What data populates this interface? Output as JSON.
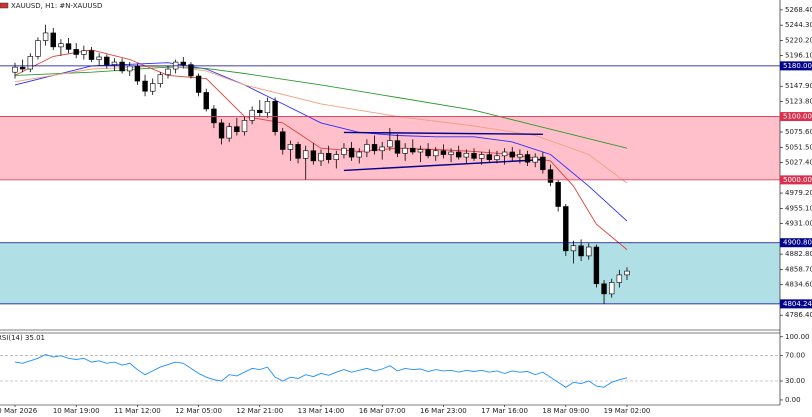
{
  "chart_data": {
    "type": "candlestick",
    "title": "XAUUSD, H1:  #N-XAUUSD",
    "categories": [
      "10 Mar 2026",
      null,
      null,
      null,
      null,
      null,
      null,
      null,
      "10 Mar 19:00",
      null,
      null,
      null,
      null,
      null,
      null,
      null,
      "11 Mar 12:00",
      null,
      null,
      null,
      null,
      null,
      null,
      null,
      "12 Mar 05:00",
      null,
      null,
      null,
      null,
      null,
      null,
      null,
      "12 Mar 21:00",
      null,
      null,
      null,
      null,
      null,
      null,
      null,
      "13 Mar 14:00",
      null,
      null,
      null,
      null,
      null,
      null,
      null,
      "16 Mar 07:00",
      null,
      null,
      null,
      null,
      null,
      null,
      null,
      "16 Mar 23:00",
      null,
      null,
      null,
      null,
      null,
      null,
      null,
      "17 Mar 16:00",
      null,
      null,
      null,
      null,
      null,
      null,
      null,
      "18 Mar 09:00",
      null,
      null,
      null,
      null,
      null,
      null,
      null,
      "19 Mar 02:00"
    ],
    "ohlc": [
      [
        5170,
        5185,
        5160,
        5178
      ],
      [
        5178,
        5190,
        5170,
        5175
      ],
      [
        5175,
        5200,
        5170,
        5195
      ],
      [
        5195,
        5225,
        5190,
        5220
      ],
      [
        5220,
        5245,
        5212,
        5232
      ],
      [
        5232,
        5240,
        5205,
        5210
      ],
      [
        5210,
        5222,
        5196,
        5215
      ],
      [
        5215,
        5224,
        5200,
        5206
      ],
      [
        5206,
        5216,
        5192,
        5198
      ],
      [
        5198,
        5212,
        5190,
        5204
      ],
      [
        5204,
        5210,
        5186,
        5190
      ],
      [
        5190,
        5200,
        5180,
        5194
      ],
      [
        5194,
        5198,
        5176,
        5182
      ],
      [
        5182,
        5192,
        5172,
        5186
      ],
      [
        5186,
        5192,
        5168,
        5172
      ],
      [
        5172,
        5186,
        5164,
        5180
      ],
      [
        5180,
        5184,
        5150,
        5156
      ],
      [
        5156,
        5166,
        5132,
        5140
      ],
      [
        5140,
        5160,
        5134,
        5152
      ],
      [
        5152,
        5170,
        5146,
        5166
      ],
      [
        5166,
        5180,
        5160,
        5175
      ],
      [
        5175,
        5190,
        5168,
        5186
      ],
      [
        5186,
        5194,
        5176,
        5182
      ],
      [
        5182,
        5186,
        5160,
        5164
      ],
      [
        5164,
        5168,
        5132,
        5138
      ],
      [
        5138,
        5144,
        5108,
        5112
      ],
      [
        5112,
        5118,
        5082,
        5090
      ],
      [
        5090,
        5096,
        5056,
        5066
      ],
      [
        5066,
        5090,
        5060,
        5084
      ],
      [
        5084,
        5098,
        5070,
        5076
      ],
      [
        5076,
        5100,
        5070,
        5094
      ],
      [
        5094,
        5116,
        5088,
        5110
      ],
      [
        5110,
        5126,
        5100,
        5106
      ],
      [
        5106,
        5130,
        5098,
        5124
      ],
      [
        5124,
        5130,
        5070,
        5076
      ],
      [
        5076,
        5082,
        5040,
        5048
      ],
      [
        5048,
        5062,
        5030,
        5056
      ],
      [
        5056,
        5060,
        5026,
        5034
      ],
      [
        5034,
        5054,
        5000,
        5046
      ],
      [
        5046,
        5058,
        5024,
        5030
      ],
      [
        5030,
        5048,
        5022,
        5042
      ],
      [
        5042,
        5054,
        5026,
        5032
      ],
      [
        5032,
        5046,
        5018,
        5040
      ],
      [
        5040,
        5058,
        5034,
        5050
      ],
      [
        5050,
        5060,
        5030,
        5036
      ],
      [
        5036,
        5050,
        5026,
        5044
      ],
      [
        5044,
        5064,
        5036,
        5056
      ],
      [
        5056,
        5070,
        5040,
        5046
      ],
      [
        5046,
        5060,
        5032,
        5052
      ],
      [
        5052,
        5082,
        5046,
        5062
      ],
      [
        5062,
        5072,
        5036,
        5042
      ],
      [
        5042,
        5058,
        5030,
        5050
      ],
      [
        5050,
        5064,
        5040,
        5044
      ],
      [
        5044,
        5054,
        5028,
        5048
      ],
      [
        5048,
        5058,
        5034,
        5038
      ],
      [
        5038,
        5052,
        5030,
        5046
      ],
      [
        5046,
        5056,
        5034,
        5040
      ],
      [
        5040,
        5050,
        5028,
        5044
      ],
      [
        5044,
        5054,
        5032,
        5036
      ],
      [
        5036,
        5048,
        5026,
        5042
      ],
      [
        5042,
        5050,
        5030,
        5034
      ],
      [
        5034,
        5044,
        5024,
        5040
      ],
      [
        5040,
        5048,
        5028,
        5032
      ],
      [
        5032,
        5046,
        5026,
        5038
      ],
      [
        5038,
        5050,
        5024,
        5044
      ],
      [
        5044,
        5052,
        5030,
        5036
      ],
      [
        5036,
        5048,
        5026,
        5040
      ],
      [
        5040,
        5046,
        5022,
        5028
      ],
      [
        5028,
        5042,
        5020,
        5036
      ],
      [
        5036,
        5044,
        5010,
        5016
      ],
      [
        5016,
        5024,
        4990,
        4996
      ],
      [
        4996,
        5000,
        4950,
        4958
      ],
      [
        4958,
        4962,
        4880,
        4888
      ],
      [
        4888,
        4904,
        4868,
        4896
      ],
      [
        4896,
        4906,
        4872,
        4880
      ],
      [
        4880,
        4900,
        4874,
        4894
      ],
      [
        4894,
        4898,
        4830,
        4836
      ],
      [
        4836,
        4842,
        4804,
        4820
      ],
      [
        4820,
        4844,
        4814,
        4838
      ],
      [
        4838,
        4858,
        4830,
        4850
      ],
      [
        4850,
        4862,
        4842,
        4856
      ]
    ],
    "up_color": "#ffffff",
    "down_color": "#000000",
    "outline_color": "#000000",
    "ylim": [
      4763,
      5284
    ],
    "yticks": [
      {
        "value": 5268.4,
        "label": "5268.40"
      },
      {
        "value": 5244.3,
        "label": "5244.30"
      },
      {
        "value": 5220.2,
        "label": "5220.20"
      },
      {
        "value": 5196.1,
        "label": "5196.10"
      },
      {
        "value": 5147.9,
        "label": "5147.90"
      },
      {
        "value": 5123.8,
        "label": "5123.80"
      },
      {
        "value": 5075.6,
        "label": "5075.60"
      },
      {
        "value": 5051.5,
        "label": "5051.50"
      },
      {
        "value": 5027.4,
        "label": "5027.40"
      },
      {
        "value": 4979.2,
        "label": "4979.20"
      },
      {
        "value": 4955.1,
        "label": "4955.10"
      },
      {
        "value": 4931,
        "label": "4931.00"
      },
      {
        "value": 4882.8,
        "label": "4882.80"
      },
      {
        "value": 4858.7,
        "label": "4858.70"
      },
      {
        "value": 4834.6,
        "label": "4834.60"
      },
      {
        "value": 4786.4,
        "label": "4786.40"
      }
    ],
    "levels": [
      {
        "value": 5180,
        "label": "5180.00",
        "color": "#00008b"
      },
      {
        "value": 5100,
        "label": "5100.00",
        "color": "#d9304f"
      },
      {
        "value": 5000,
        "label": "5000.00",
        "color": "#d9304f"
      },
      {
        "value": 4900.8,
        "label": "4900.80",
        "color": "#00008b"
      },
      {
        "value": 4804.24,
        "label": "4804.24",
        "color": "#00008b"
      }
    ],
    "zones": [
      {
        "levels": [
          1,
          2
        ],
        "color": "#ffc0cb"
      },
      {
        "levels": [
          3,
          4
        ],
        "color": "#b0e0e6"
      }
    ],
    "overlays": [
      {
        "color": "#e0403a",
        "x": [
          0,
          5,
          10,
          15,
          20,
          25,
          30,
          35,
          40,
          45,
          50,
          55,
          60,
          65,
          70,
          73,
          76,
          80
        ],
        "values": [
          5165,
          5195,
          5205,
          5190,
          5165,
          5160,
          5100,
          5090,
          5050,
          5045,
          5050,
          5048,
          5045,
          5040,
          5030,
          4990,
          4930,
          4890
        ]
      },
      {
        "color": "#2b2bff",
        "x": [
          0,
          10,
          20,
          25,
          30,
          35,
          40,
          45,
          50,
          55,
          60,
          65,
          70,
          75,
          80
        ],
        "values": [
          5150,
          5180,
          5185,
          5175,
          5150,
          5120,
          5090,
          5075,
          5070,
          5068,
          5068,
          5060,
          5040,
          4990,
          4935
        ]
      },
      {
        "color": "#2e9a2e",
        "x": [
          0,
          10,
          20,
          25,
          30,
          40,
          50,
          60,
          70,
          80
        ],
        "values": [
          5165,
          5170,
          5178,
          5176,
          5168,
          5150,
          5130,
          5110,
          5080,
          5050
        ]
      },
      {
        "color": "#f0a080",
        "x": [
          0,
          10,
          20,
          25,
          30,
          40,
          50,
          60,
          68,
          75,
          80
        ],
        "values": [
          5155,
          5175,
          5180,
          5172,
          5150,
          5120,
          5100,
          5085,
          5070,
          5040,
          4995
        ]
      }
    ],
    "trendlines": [
      {
        "color": "#00008b",
        "x": [
          43,
          69
        ],
        "values": [
          5075,
          5072
        ]
      },
      {
        "color": "#00008b",
        "x": [
          43,
          69
        ],
        "values": [
          5015,
          5032
        ]
      }
    ],
    "rsi": {
      "label": "RSI(14) 35.01",
      "color": "#1e90ff",
      "values": [
        60,
        58,
        62,
        66,
        72,
        68,
        70,
        66,
        64,
        66,
        60,
        62,
        58,
        60,
        55,
        58,
        48,
        40,
        46,
        52,
        56,
        60,
        58,
        50,
        42,
        36,
        32,
        30,
        40,
        38,
        44,
        50,
        48,
        52,
        36,
        30,
        36,
        34,
        40,
        37,
        42,
        39,
        44,
        48,
        44,
        47,
        50,
        46,
        49,
        54,
        46,
        50,
        48,
        49,
        45,
        48,
        46,
        47,
        44,
        47,
        45,
        47,
        44,
        46,
        42,
        46,
        44,
        45,
        40,
        44,
        36,
        28,
        20,
        28,
        26,
        30,
        22,
        20,
        28,
        32,
        35.01
      ],
      "ylim": [
        -8,
        106
      ],
      "yticks": [
        {
          "value": 100,
          "label": "100.00"
        },
        {
          "value": 70,
          "label": "70.00"
        },
        {
          "value": 30,
          "label": "30.00"
        },
        {
          "value": 0,
          "label": "0.00"
        }
      ],
      "dashed_ticks": [
        1,
        2
      ]
    }
  }
}
